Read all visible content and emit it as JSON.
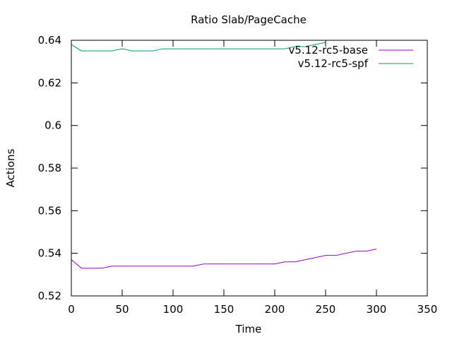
{
  "chart_data": {
    "type": "line",
    "title": "Ratio Slab/PageCache",
    "xlabel": "Time",
    "ylabel": "Actions",
    "xlim": [
      0,
      350
    ],
    "ylim": [
      0.52,
      0.64
    ],
    "xticks": [
      0,
      50,
      100,
      150,
      200,
      250,
      300,
      350
    ],
    "yticks": [
      0.52,
      0.54,
      0.56,
      0.58,
      0.6,
      0.62,
      0.64
    ],
    "ytick_labels": [
      "0.52",
      "0.54",
      "0.56",
      "0.58",
      "0.6",
      "0.62",
      "0.64"
    ],
    "grid": false,
    "legend_position": "top-right",
    "series": [
      {
        "name": "v5.12-rc5-base",
        "color": "#9400d3",
        "x": [
          0,
          10,
          20,
          30,
          40,
          50,
          60,
          70,
          80,
          90,
          100,
          110,
          120,
          130,
          140,
          150,
          160,
          170,
          180,
          190,
          200,
          210,
          220,
          230,
          240,
          250,
          260,
          270,
          280,
          290,
          300
        ],
        "y": [
          0.537,
          0.533,
          0.533,
          0.533,
          0.534,
          0.534,
          0.534,
          0.534,
          0.534,
          0.534,
          0.534,
          0.534,
          0.534,
          0.535,
          0.535,
          0.535,
          0.535,
          0.535,
          0.535,
          0.535,
          0.535,
          0.536,
          0.536,
          0.537,
          0.538,
          0.539,
          0.539,
          0.54,
          0.541,
          0.541,
          0.542
        ]
      },
      {
        "name": "v5.12-rc5-spf",
        "color": "#009e73",
        "x": [
          0,
          10,
          20,
          30,
          40,
          50,
          60,
          70,
          80,
          90,
          100,
          110,
          120,
          130,
          140,
          150,
          160,
          170,
          180,
          190,
          200,
          210,
          220,
          230,
          240,
          250
        ],
        "y": [
          0.638,
          0.635,
          0.635,
          0.635,
          0.635,
          0.636,
          0.635,
          0.635,
          0.635,
          0.636,
          0.636,
          0.636,
          0.636,
          0.636,
          0.636,
          0.636,
          0.636,
          0.636,
          0.636,
          0.636,
          0.636,
          0.636,
          0.637,
          0.637,
          0.638,
          0.639
        ]
      }
    ]
  }
}
